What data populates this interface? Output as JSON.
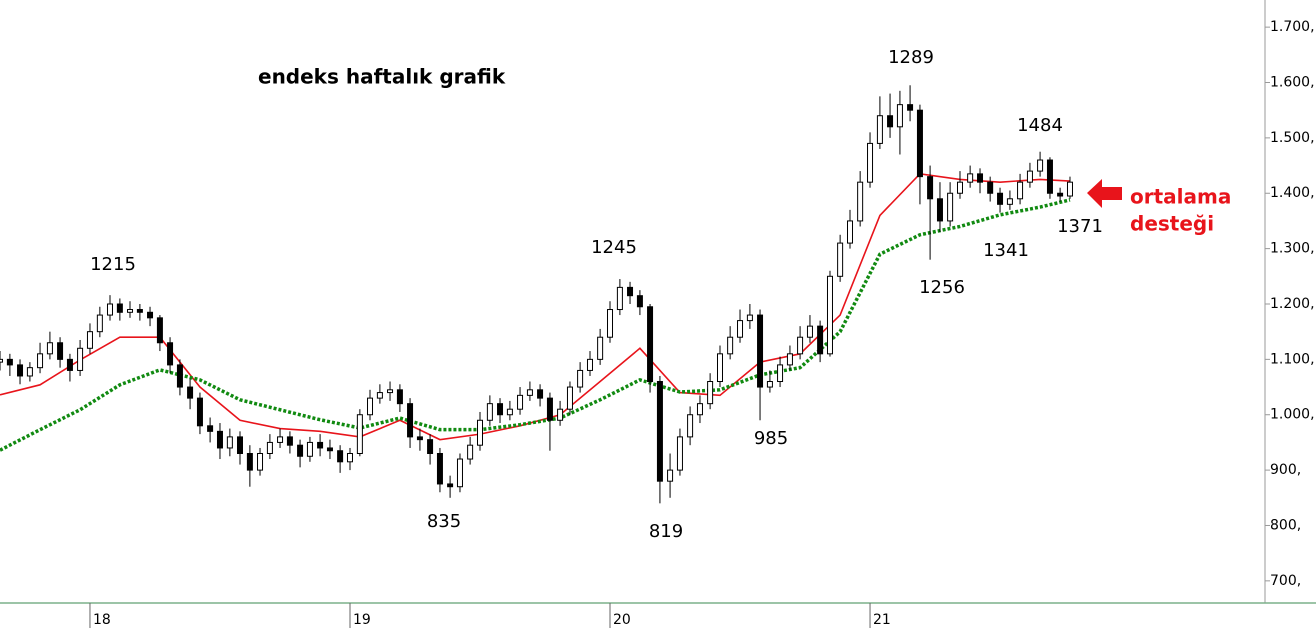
{
  "chart_data": {
    "type": "candlestick",
    "title": "endeks haftalık grafik",
    "note": [
      "ortalama",
      "desteği"
    ],
    "annotations": [
      "1215",
      "1245",
      "1289",
      "1484",
      "835",
      "819",
      "985",
      "1256",
      "1341",
      "1371"
    ],
    "xlim": [
      2017.654,
      2022.519
    ],
    "xticks": [
      {
        "value": 2018,
        "label": "18"
      },
      {
        "value": 2019,
        "label": "19"
      },
      {
        "value": 2020,
        "label": "20"
      },
      {
        "value": 2021,
        "label": "21"
      }
    ],
    "ylim": [
      660,
      1749
    ],
    "yticks": [
      {
        "value": 700,
        "label": "700,"
      },
      {
        "value": 800,
        "label": "800,"
      },
      {
        "value": 900,
        "label": "900,"
      },
      {
        "value": 1000,
        "label": "1.000,"
      },
      {
        "value": 1100,
        "label": "1.100,"
      },
      {
        "value": 1200,
        "label": "1.200,"
      },
      {
        "value": 1300,
        "label": "1.300,"
      },
      {
        "value": 1400,
        "label": "1.400,"
      },
      {
        "value": 1500,
        "label": "1.500,"
      },
      {
        "value": 1600,
        "label": "1.600,"
      },
      {
        "value": 1700,
        "label": "1.700,"
      }
    ],
    "up_color": "#ffffff",
    "down_color": "#000000",
    "x": [
      2017.654,
      2017.692,
      2017.731,
      2017.769,
      2017.808,
      2017.846,
      2017.885,
      2017.923,
      2017.962,
      2018.0,
      2018.038,
      2018.077,
      2018.115,
      2018.154,
      2018.192,
      2018.231,
      2018.269,
      2018.308,
      2018.346,
      2018.385,
      2018.423,
      2018.462,
      2018.5,
      2018.538,
      2018.577,
      2018.615,
      2018.654,
      2018.692,
      2018.731,
      2018.769,
      2018.808,
      2018.846,
      2018.885,
      2018.923,
      2018.962,
      2019.0,
      2019.038,
      2019.077,
      2019.115,
      2019.154,
      2019.192,
      2019.231,
      2019.269,
      2019.308,
      2019.346,
      2019.385,
      2019.423,
      2019.462,
      2019.5,
      2019.538,
      2019.577,
      2019.615,
      2019.654,
      2019.692,
      2019.731,
      2019.769,
      2019.808,
      2019.846,
      2019.885,
      2019.923,
      2019.962,
      2020.0,
      2020.038,
      2020.077,
      2020.115,
      2020.154,
      2020.192,
      2020.231,
      2020.269,
      2020.308,
      2020.346,
      2020.385,
      2020.423,
      2020.462,
      2020.5,
      2020.538,
      2020.577,
      2020.615,
      2020.654,
      2020.692,
      2020.731,
      2020.769,
      2020.808,
      2020.846,
      2020.885,
      2020.923,
      2020.962,
      2021.0,
      2021.038,
      2021.077,
      2021.115,
      2021.154,
      2021.192,
      2021.231,
      2021.269,
      2021.308,
      2021.346,
      2021.385,
      2021.423,
      2021.462,
      2021.5,
      2021.538,
      2021.577,
      2021.615,
      2021.654,
      2021.692,
      2021.731,
      2021.769
    ],
    "open": [
      1095,
      1100,
      1090,
      1070,
      1085,
      1110,
      1130,
      1100,
      1080,
      1120,
      1150,
      1180,
      1200,
      1185,
      1190,
      1185,
      1175,
      1130,
      1090,
      1050,
      1030,
      980,
      970,
      940,
      960,
      930,
      900,
      930,
      950,
      960,
      945,
      925,
      950,
      940,
      935,
      915,
      930,
      1000,
      1030,
      1040,
      1045,
      1020,
      960,
      955,
      930,
      875,
      870,
      920,
      945,
      990,
      1020,
      1000,
      1010,
      1035,
      1045,
      1030,
      990,
      1010,
      1050,
      1080,
      1100,
      1140,
      1190,
      1230,
      1215,
      1195,
      1060,
      880,
      900,
      960,
      1000,
      1020,
      1060,
      1110,
      1140,
      1170,
      1180,
      1050,
      1060,
      1090,
      1110,
      1140,
      1160,
      1110,
      1250,
      1310,
      1350,
      1420,
      1490,
      1540,
      1520,
      1560,
      1550,
      1430,
      1390,
      1350,
      1400,
      1420,
      1435,
      1420,
      1400,
      1380,
      1390,
      1420,
      1440,
      1460,
      1400,
      1395
    ],
    "high": [
      1115,
      1110,
      1100,
      1095,
      1130,
      1150,
      1140,
      1110,
      1135,
      1165,
      1195,
      1216,
      1210,
      1205,
      1200,
      1195,
      1180,
      1140,
      1100,
      1065,
      1040,
      995,
      985,
      975,
      970,
      945,
      940,
      965,
      975,
      970,
      955,
      960,
      965,
      955,
      945,
      940,
      1010,
      1045,
      1055,
      1060,
      1055,
      1030,
      975,
      965,
      940,
      890,
      930,
      960,
      1005,
      1035,
      1030,
      1025,
      1050,
      1060,
      1055,
      1040,
      1025,
      1060,
      1095,
      1115,
      1155,
      1205,
      1245,
      1240,
      1225,
      1200,
      1070,
      930,
      975,
      1015,
      1035,
      1075,
      1125,
      1160,
      1190,
      1200,
      1190,
      1080,
      1105,
      1125,
      1160,
      1180,
      1170,
      1260,
      1325,
      1370,
      1440,
      1510,
      1575,
      1580,
      1585,
      1595,
      1560,
      1450,
      1420,
      1420,
      1440,
      1450,
      1445,
      1430,
      1410,
      1405,
      1435,
      1455,
      1475,
      1465,
      1410,
      1430
    ],
    "low": [
      1080,
      1070,
      1055,
      1060,
      1075,
      1100,
      1085,
      1060,
      1070,
      1110,
      1140,
      1170,
      1170,
      1175,
      1170,
      1160,
      1115,
      1075,
      1035,
      1010,
      965,
      950,
      920,
      925,
      910,
      870,
      890,
      920,
      940,
      930,
      905,
      915,
      925,
      920,
      895,
      900,
      925,
      990,
      1020,
      1025,
      1005,
      940,
      935,
      910,
      860,
      850,
      860,
      910,
      935,
      980,
      985,
      990,
      1000,
      1025,
      1015,
      935,
      980,
      1000,
      1040,
      1070,
      1090,
      1130,
      1180,
      1200,
      1180,
      1040,
      840,
      850,
      890,
      945,
      985,
      1010,
      1050,
      1100,
      1130,
      1155,
      990,
      1040,
      1050,
      1080,
      1100,
      1130,
      1095,
      1105,
      1240,
      1300,
      1340,
      1410,
      1480,
      1500,
      1470,
      1530,
      1380,
      1280,
      1330,
      1340,
      1390,
      1410,
      1400,
      1385,
      1365,
      1370,
      1380,
      1410,
      1430,
      1390,
      1385,
      1390
    ],
    "close": [
      1100,
      1090,
      1070,
      1085,
      1110,
      1130,
      1100,
      1080,
      1120,
      1150,
      1180,
      1200,
      1185,
      1190,
      1185,
      1175,
      1130,
      1090,
      1050,
      1030,
      980,
      970,
      940,
      960,
      930,
      900,
      930,
      950,
      960,
      945,
      925,
      950,
      940,
      935,
      915,
      930,
      1000,
      1030,
      1040,
      1045,
      1020,
      960,
      955,
      930,
      875,
      870,
      920,
      945,
      990,
      1020,
      1000,
      1010,
      1035,
      1045,
      1030,
      990,
      1010,
      1050,
      1080,
      1100,
      1140,
      1190,
      1230,
      1215,
      1195,
      1060,
      880,
      900,
      960,
      1000,
      1020,
      1060,
      1110,
      1140,
      1170,
      1180,
      1050,
      1060,
      1090,
      1110,
      1140,
      1160,
      1110,
      1250,
      1310,
      1350,
      1420,
      1490,
      1540,
      1520,
      1560,
      1550,
      1430,
      1390,
      1350,
      1400,
      1420,
      1435,
      1420,
      1400,
      1380,
      1390,
      1420,
      1440,
      1460,
      1400,
      1395,
      1420
    ],
    "lines": {
      "x": [
        2017.654,
        2017.808,
        2017.962,
        2018.115,
        2018.269,
        2018.423,
        2018.577,
        2018.731,
        2018.885,
        2019.038,
        2019.192,
        2019.346,
        2019.5,
        2019.654,
        2019.808,
        2019.962,
        2020.115,
        2020.269,
        2020.423,
        2020.577,
        2020.731,
        2020.885,
        2021.038,
        2021.192,
        2021.346,
        2021.5,
        2021.654,
        2021.769
      ],
      "series": [
        {
          "color": "#e8141b",
          "dashed": false,
          "values": [
            1036,
            1054,
            1099,
            1140,
            1140,
            1050,
            990,
            975,
            970,
            960,
            990,
            955,
            965,
            980,
            1000,
            1060,
            1120,
            1040,
            1035,
            1095,
            1110,
            1180,
            1360,
            1435,
            1425,
            1420,
            1425,
            1422
          ]
        },
        {
          "color": "#118a11",
          "dashed": true,
          "values": [
            936,
            973,
            1009,
            1054,
            1081,
            1063,
            1027,
            1009,
            991,
            976,
            994,
            973,
            973,
            982,
            994,
            1027,
            1063,
            1041,
            1045,
            1072,
            1085,
            1150,
            1290,
            1325,
            1340,
            1361,
            1375,
            1388
          ]
        }
      ]
    }
  }
}
